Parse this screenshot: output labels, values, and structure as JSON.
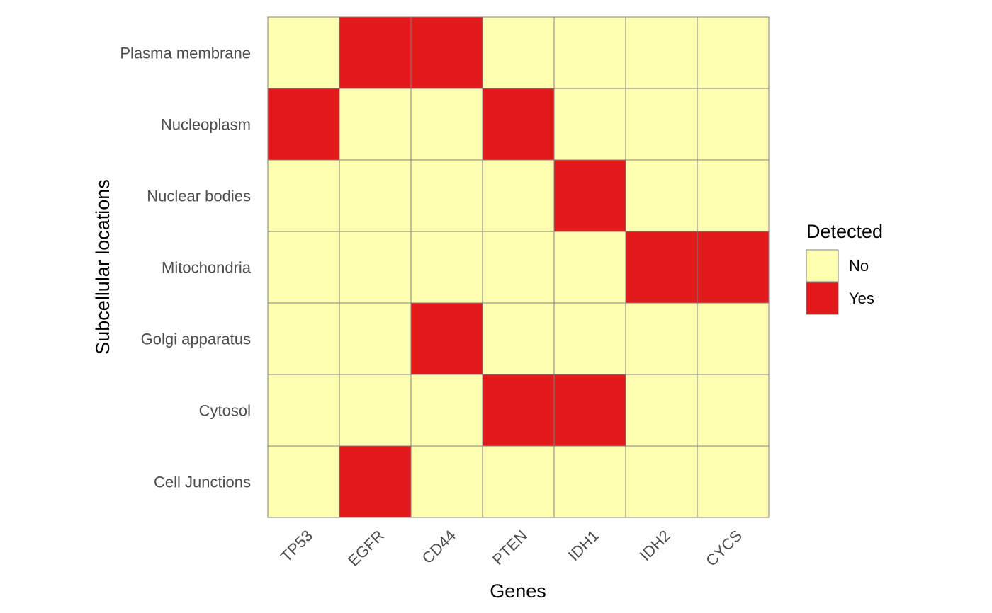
{
  "chart_data": {
    "type": "heatmap",
    "title": "",
    "xlabel": "Genes",
    "ylabel": "Subcellular locations",
    "x_categories": [
      "TP53",
      "EGFR",
      "CD44",
      "PTEN",
      "IDH1",
      "IDH2",
      "CYCS"
    ],
    "y_categories": [
      "Plasma membrane",
      "Nucleoplasm",
      "Nuclear bodies",
      "Mitochondria",
      "Golgi apparatus",
      "Cytosol",
      "Cell Junctions"
    ],
    "values": [
      [
        "No",
        "Yes",
        "Yes",
        "No",
        "No",
        "No",
        "No"
      ],
      [
        "Yes",
        "No",
        "No",
        "Yes",
        "No",
        "No",
        "No"
      ],
      [
        "No",
        "No",
        "No",
        "No",
        "Yes",
        "No",
        "No"
      ],
      [
        "No",
        "No",
        "No",
        "No",
        "No",
        "Yes",
        "Yes"
      ],
      [
        "No",
        "No",
        "Yes",
        "No",
        "No",
        "No",
        "No"
      ],
      [
        "No",
        "No",
        "No",
        "Yes",
        "Yes",
        "No",
        "No"
      ],
      [
        "No",
        "Yes",
        "No",
        "No",
        "No",
        "No",
        "No"
      ]
    ],
    "legend": {
      "title": "Detected",
      "placement": "right",
      "entries": [
        {
          "label": "No",
          "color": "#FFFFB2"
        },
        {
          "label": "Yes",
          "color": "#E31A1C"
        }
      ]
    },
    "cell_border_color": "#808080",
    "grid": false
  }
}
